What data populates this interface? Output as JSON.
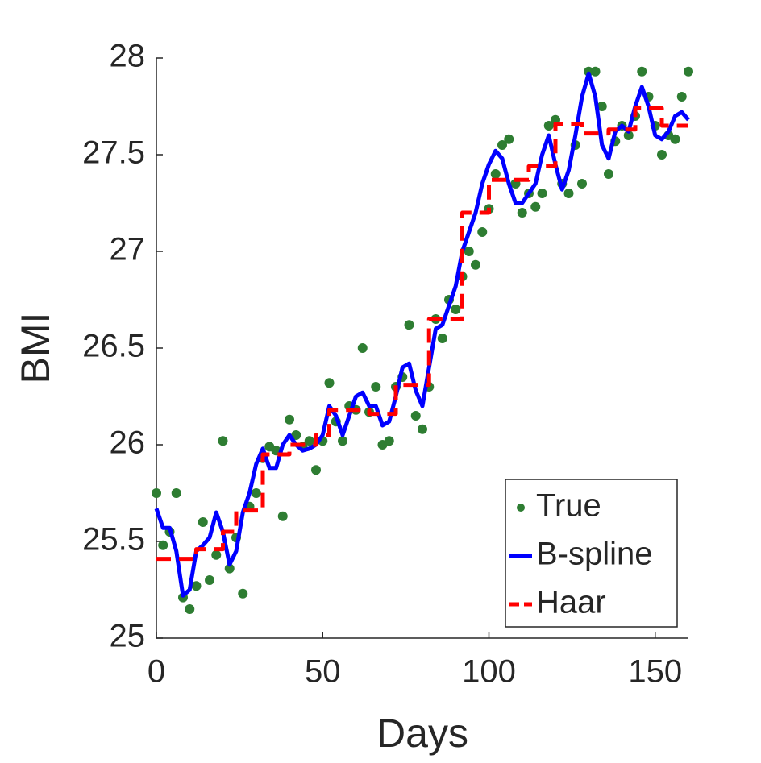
{
  "chart_data": {
    "type": "line",
    "xlabel": "Days",
    "ylabel": "BMI",
    "xlim": [
      0,
      160
    ],
    "ylim": [
      25,
      28
    ],
    "xticks": [
      0,
      50,
      100,
      150
    ],
    "yticks": [
      25,
      25.5,
      26,
      26.5,
      27,
      27.5,
      28
    ],
    "legend": "bottom-right",
    "series": [
      {
        "name": "True",
        "style": "markers",
        "color": "#2e7d32",
        "x": [
          0,
          2,
          4,
          6,
          8,
          10,
          12,
          14,
          16,
          18,
          20,
          22,
          24,
          26,
          28,
          30,
          32,
          34,
          36,
          38,
          40,
          42,
          44,
          46,
          48,
          50,
          52,
          54,
          56,
          58,
          60,
          62,
          64,
          66,
          68,
          70,
          72,
          74,
          76,
          78,
          80,
          82,
          84,
          86,
          88,
          90,
          92,
          94,
          96,
          98,
          100,
          102,
          104,
          106,
          108,
          110,
          112,
          114,
          116,
          118,
          120,
          122,
          124,
          126,
          128,
          130,
          132,
          134,
          136,
          138,
          140,
          142,
          144,
          146,
          148,
          150,
          152,
          154,
          156,
          158,
          160
        ],
        "values": [
          25.75,
          25.48,
          25.55,
          25.75,
          25.21,
          25.15,
          25.27,
          25.6,
          25.3,
          25.43,
          26.02,
          25.36,
          25.52,
          25.23,
          25.68,
          25.75,
          25.93,
          25.99,
          25.97,
          25.63,
          26.13,
          26.05,
          25.99,
          26.02,
          25.87,
          26.02,
          26.32,
          26.12,
          26.02,
          26.2,
          26.18,
          26.5,
          26.17,
          26.3,
          26.0,
          26.02,
          26.3,
          26.35,
          26.62,
          26.15,
          26.08,
          26.3,
          26.65,
          26.55,
          26.75,
          26.7,
          26.87,
          27.0,
          26.93,
          27.1,
          27.22,
          27.4,
          27.55,
          27.58,
          27.35,
          27.2,
          27.3,
          27.23,
          27.3,
          27.65,
          27.68,
          27.35,
          27.3,
          27.55,
          27.35,
          27.93,
          27.93,
          27.75,
          27.4,
          27.57,
          27.65,
          27.6,
          27.7,
          27.93,
          27.8,
          27.65,
          27.5,
          27.6,
          27.58,
          27.8,
          27.93
        ]
      },
      {
        "name": "B-spline",
        "style": "solid",
        "color": "#0000ff",
        "x": [
          0,
          2,
          4,
          6,
          8,
          10,
          12,
          14,
          16,
          18,
          20,
          22,
          24,
          26,
          28,
          30,
          32,
          34,
          36,
          38,
          40,
          42,
          44,
          46,
          48,
          50,
          52,
          54,
          56,
          58,
          60,
          62,
          64,
          66,
          68,
          70,
          72,
          74,
          76,
          78,
          80,
          82,
          84,
          86,
          88,
          90,
          92,
          94,
          96,
          98,
          100,
          102,
          104,
          106,
          108,
          110,
          112,
          114,
          116,
          118,
          120,
          122,
          124,
          126,
          128,
          130,
          132,
          134,
          136,
          138,
          140,
          142,
          144,
          146,
          148,
          150,
          152,
          154,
          156,
          158,
          160
        ],
        "values": [
          25.67,
          25.57,
          25.57,
          25.45,
          25.22,
          25.25,
          25.45,
          25.48,
          25.52,
          25.65,
          25.55,
          25.38,
          25.45,
          25.65,
          25.75,
          25.9,
          25.98,
          25.88,
          25.88,
          26.0,
          26.05,
          26.0,
          25.97,
          25.98,
          26.0,
          26.05,
          26.2,
          26.15,
          26.05,
          26.15,
          26.25,
          26.27,
          26.2,
          26.2,
          26.1,
          26.12,
          26.25,
          26.4,
          26.42,
          26.28,
          26.2,
          26.4,
          26.6,
          26.62,
          26.72,
          26.82,
          27.0,
          27.1,
          27.2,
          27.35,
          27.45,
          27.52,
          27.48,
          27.35,
          27.25,
          27.25,
          27.3,
          27.35,
          27.5,
          27.6,
          27.45,
          27.32,
          27.42,
          27.6,
          27.8,
          27.92,
          27.8,
          27.55,
          27.48,
          27.62,
          27.65,
          27.62,
          27.75,
          27.85,
          27.75,
          27.6,
          27.58,
          27.62,
          27.7,
          27.72,
          27.68
        ]
      },
      {
        "name": "Haar",
        "style": "dashed",
        "color": "#ff0000",
        "x": [
          0,
          12,
          12,
          20,
          20,
          24,
          24,
          32,
          32,
          40,
          40,
          48,
          48,
          52,
          52,
          64,
          64,
          72,
          72,
          82,
          82,
          92,
          92,
          100,
          100,
          112,
          112,
          120,
          120,
          128,
          128,
          136,
          136,
          144,
          144,
          152,
          152,
          160
        ],
        "values": [
          25.41,
          25.41,
          25.46,
          25.46,
          25.55,
          25.55,
          25.66,
          25.66,
          25.95,
          25.95,
          26.0,
          26.0,
          26.05,
          26.05,
          26.18,
          26.18,
          26.16,
          26.16,
          26.31,
          26.31,
          26.65,
          26.65,
          27.2,
          27.2,
          27.37,
          27.37,
          27.44,
          27.44,
          27.66,
          27.66,
          27.61,
          27.61,
          27.63,
          27.63,
          27.74,
          27.74,
          27.65,
          27.65
        ]
      }
    ]
  }
}
